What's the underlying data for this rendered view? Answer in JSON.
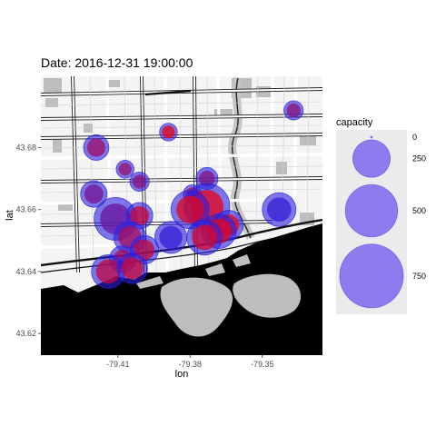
{
  "chart_data": {
    "type": "scatter",
    "title": "Date: 2016-12-31 19:00:00",
    "xlabel": "lon",
    "ylabel": "lat",
    "xlim": [
      -79.442,
      -79.325
    ],
    "ylim": [
      43.613,
      43.703
    ],
    "x_ticks": [
      -79.41,
      -79.38,
      -79.35
    ],
    "x_tick_labels": [
      "-79.41",
      "-79.38",
      "-79.35"
    ],
    "y_ticks": [
      43.62,
      43.64,
      43.66,
      43.68
    ],
    "y_tick_labels": [
      "43.62",
      "43.64",
      "43.66",
      "43.68"
    ],
    "background": "street map of downtown Toronto",
    "legend": {
      "title": "capacity",
      "placement": "right",
      "entries": [
        {
          "value": 0,
          "label": "0"
        },
        {
          "value": 250,
          "label": "250"
        },
        {
          "value": 500,
          "label": "500"
        },
        {
          "value": 750,
          "label": "750"
        }
      ]
    },
    "colors": {
      "low": "#2a1fe0",
      "high": "#ff0000",
      "legend_fill": "#7b68ee"
    },
    "points": [
      {
        "lon": -79.337,
        "lat": 43.692,
        "capacity": 60,
        "fill": 0.45
      },
      {
        "lon": -79.389,
        "lat": 43.685,
        "capacity": 50,
        "fill": 0.9
      },
      {
        "lon": -79.419,
        "lat": 43.68,
        "capacity": 110,
        "fill": 0.55
      },
      {
        "lon": -79.373,
        "lat": 43.67,
        "capacity": 80,
        "fill": 0.4
      },
      {
        "lon": -79.407,
        "lat": 43.673,
        "capacity": 50,
        "fill": 0.5
      },
      {
        "lon": -79.401,
        "lat": 43.669,
        "capacity": 60,
        "fill": 0.45
      },
      {
        "lon": -79.42,
        "lat": 43.665,
        "capacity": 120,
        "fill": 0.35
      },
      {
        "lon": -79.379,
        "lat": 43.665,
        "capacity": 55,
        "fill": 0.7
      },
      {
        "lon": -79.373,
        "lat": 43.661,
        "capacity": 380,
        "fill": 0.9
      },
      {
        "lon": -79.38,
        "lat": 43.66,
        "capacity": 260,
        "fill": 0.85
      },
      {
        "lon": -79.343,
        "lat": 43.66,
        "capacity": 200,
        "fill": 0.05
      },
      {
        "lon": -79.411,
        "lat": 43.657,
        "capacity": 330,
        "fill": 0.3
      },
      {
        "lon": -79.401,
        "lat": 43.658,
        "capacity": 120,
        "fill": 0.75
      },
      {
        "lon": -79.364,
        "lat": 43.655,
        "capacity": 150,
        "fill": 0.85
      },
      {
        "lon": -79.368,
        "lat": 43.653,
        "capacity": 210,
        "fill": 0.9
      },
      {
        "lon": -79.374,
        "lat": 43.651,
        "capacity": 220,
        "fill": 0.8
      },
      {
        "lon": -79.388,
        "lat": 43.651,
        "capacity": 180,
        "fill": 0.05
      },
      {
        "lon": -79.405,
        "lat": 43.651,
        "capacity": 180,
        "fill": 0.6
      },
      {
        "lon": -79.399,
        "lat": 43.647,
        "capacity": 140,
        "fill": 0.7
      },
      {
        "lon": -79.408,
        "lat": 43.644,
        "capacity": 120,
        "fill": 0.6
      },
      {
        "lon": -79.414,
        "lat": 43.64,
        "capacity": 200,
        "fill": 0.7
      },
      {
        "lon": -79.404,
        "lat": 43.641,
        "capacity": 160,
        "fill": 0.75
      }
    ]
  }
}
